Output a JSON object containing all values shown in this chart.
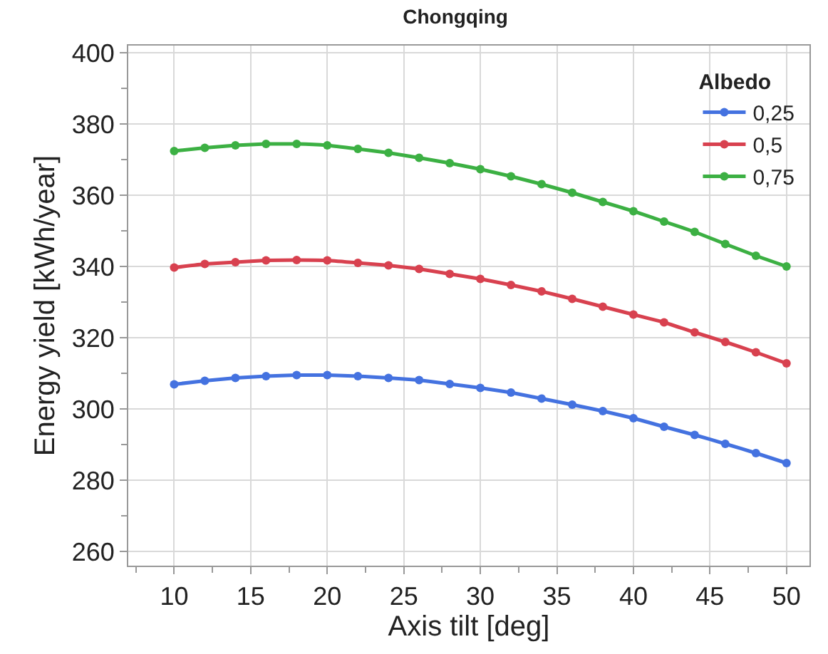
{
  "chart_data": {
    "type": "line",
    "title": "Chongqing",
    "xlabel": "Axis tilt [deg]",
    "ylabel": "Energy yield [kWh/year]",
    "legend_title": "Albedo",
    "legend": "top right",
    "grid": true,
    "marker": "circle",
    "line_style": "solid",
    "x": [
      10,
      12,
      14,
      16,
      18,
      20,
      22,
      24,
      26,
      28,
      30,
      32,
      34,
      36,
      38,
      40,
      42,
      44,
      46,
      48,
      50
    ],
    "xlim": [
      7,
      51.5
    ],
    "xticks": [
      10,
      15,
      20,
      25,
      30,
      35,
      40,
      45,
      50
    ],
    "ylim": [
      256,
      402
    ],
    "yticks": [
      260,
      280,
      300,
      320,
      340,
      360,
      380,
      400
    ],
    "series": [
      {
        "name": "0,25",
        "color": "#4472e0",
        "values": [
          306.9,
          307.9,
          308.7,
          309.2,
          309.5,
          309.5,
          309.2,
          308.7,
          308.1,
          307.0,
          305.9,
          304.6,
          302.9,
          301.2,
          299.4,
          297.4,
          295.0,
          292.7,
          290.2,
          287.6,
          284.8
        ]
      },
      {
        "name": "0,5",
        "color": "#d8414f",
        "values": [
          339.7,
          340.7,
          341.2,
          341.7,
          341.8,
          341.7,
          341.0,
          340.3,
          339.3,
          337.9,
          336.5,
          334.8,
          333.0,
          330.9,
          328.7,
          326.5,
          324.3,
          321.5,
          318.8,
          315.9,
          312.8
        ]
      },
      {
        "name": "0,75",
        "color": "#3cb043",
        "values": [
          372.4,
          373.3,
          374.0,
          374.4,
          374.4,
          374.0,
          373.0,
          371.9,
          370.5,
          369.0,
          367.3,
          365.3,
          363.1,
          360.7,
          358.1,
          355.5,
          352.6,
          349.7,
          346.3,
          343.0,
          340.0
        ]
      }
    ]
  }
}
